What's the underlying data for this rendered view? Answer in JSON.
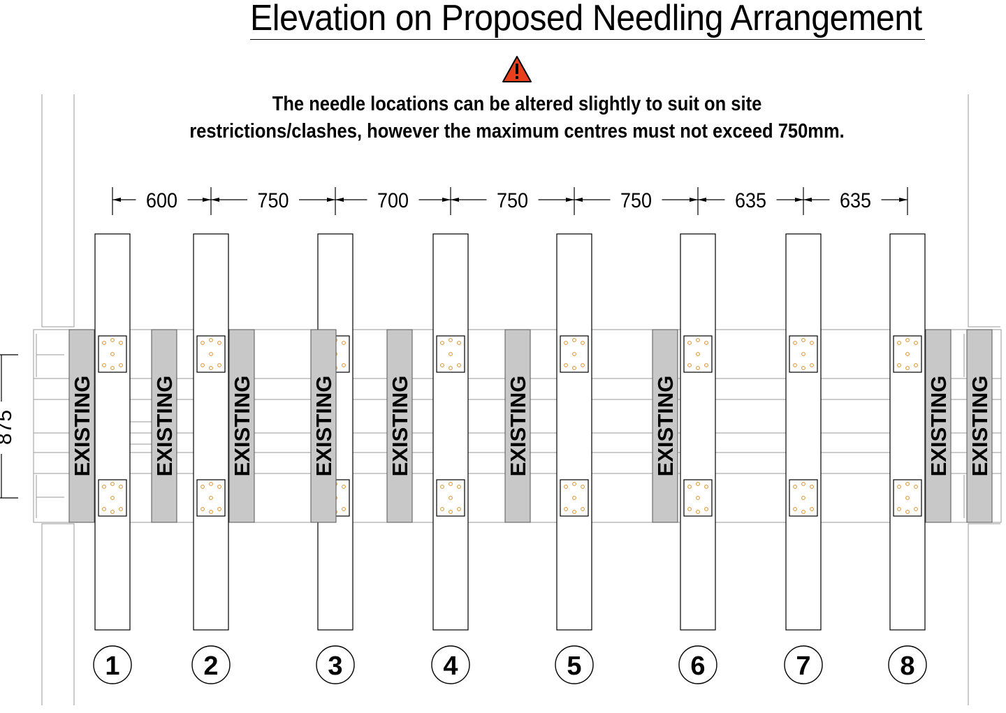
{
  "title": "Elevation on Proposed Needling Arrangement",
  "warning": {
    "icon": "warning-triangle-icon",
    "color": "#e8401c",
    "line1": "The needle locations can be altered slightly to suit on site",
    "line2": "restrictions/clashes, however the maximum centres must not exceed 750mm."
  },
  "dimensions": {
    "spacings": [
      "600",
      "750",
      "700",
      "750",
      "750",
      "635",
      "635"
    ],
    "vertical": "875"
  },
  "needles": [
    {
      "number": "1"
    },
    {
      "number": "2"
    },
    {
      "number": "3"
    },
    {
      "number": "4"
    },
    {
      "number": "5"
    },
    {
      "number": "6"
    },
    {
      "number": "7"
    },
    {
      "number": "8"
    }
  ],
  "existing_label": "EXISTING",
  "existing_count": 9,
  "colors": {
    "existing_fill": "#c8c8c8",
    "bolt": "#e0902a",
    "line": "#000000",
    "light_line": "#9a9a9a"
  }
}
